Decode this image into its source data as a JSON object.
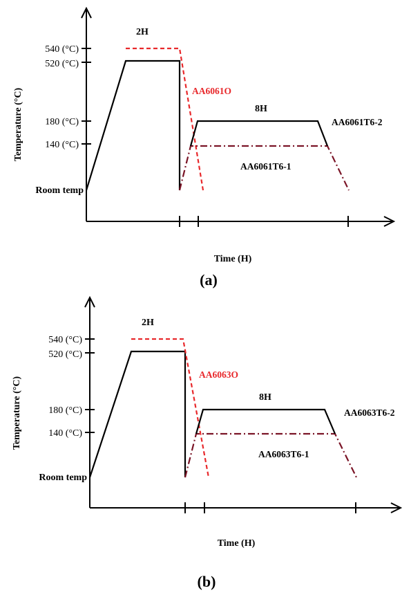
{
  "colors": {
    "axis": "#000000",
    "solution": "#000000",
    "annealed": "#e8282b",
    "aging1": "#7a1426",
    "aging2": "#000000",
    "annealed_label": "#e8282b"
  },
  "panels": [
    {
      "panel_label": "(a)",
      "y_axis_label": "Temperature (°C)",
      "x_axis_label": "Time (H)",
      "y_ticks": [
        {
          "value": "540",
          "label": "540 (°C)"
        },
        {
          "value": "520",
          "label": "520 (°C)"
        },
        {
          "value": "180",
          "label": "180 (°C)"
        },
        {
          "value": "140",
          "label": "140 (°C)"
        },
        {
          "value": "room",
          "label": "Room temp"
        }
      ],
      "duration_labels": {
        "solution": "2H",
        "aging": "8H"
      },
      "series_labels": {
        "annealed": "AA6061O",
        "aging2": "AA6061T6-2",
        "aging1": "AA6061T6-1"
      }
    },
    {
      "panel_label": "(b)",
      "y_axis_label": "Temperature (°C)",
      "x_axis_label": "Time (H)",
      "y_ticks": [
        {
          "value": "540",
          "label": "540 (°C)"
        },
        {
          "value": "520",
          "label": "520 (°C)"
        },
        {
          "value": "180",
          "label": "180 (°C)"
        },
        {
          "value": "140",
          "label": "140 (°C)"
        },
        {
          "value": "room",
          "label": "Room temp"
        }
      ],
      "duration_labels": {
        "solution": "2H",
        "aging": "8H"
      },
      "series_labels": {
        "annealed": "AA6063O",
        "aging2": "AA6063T6-2",
        "aging1": "AA6063T6-1"
      }
    }
  ]
}
